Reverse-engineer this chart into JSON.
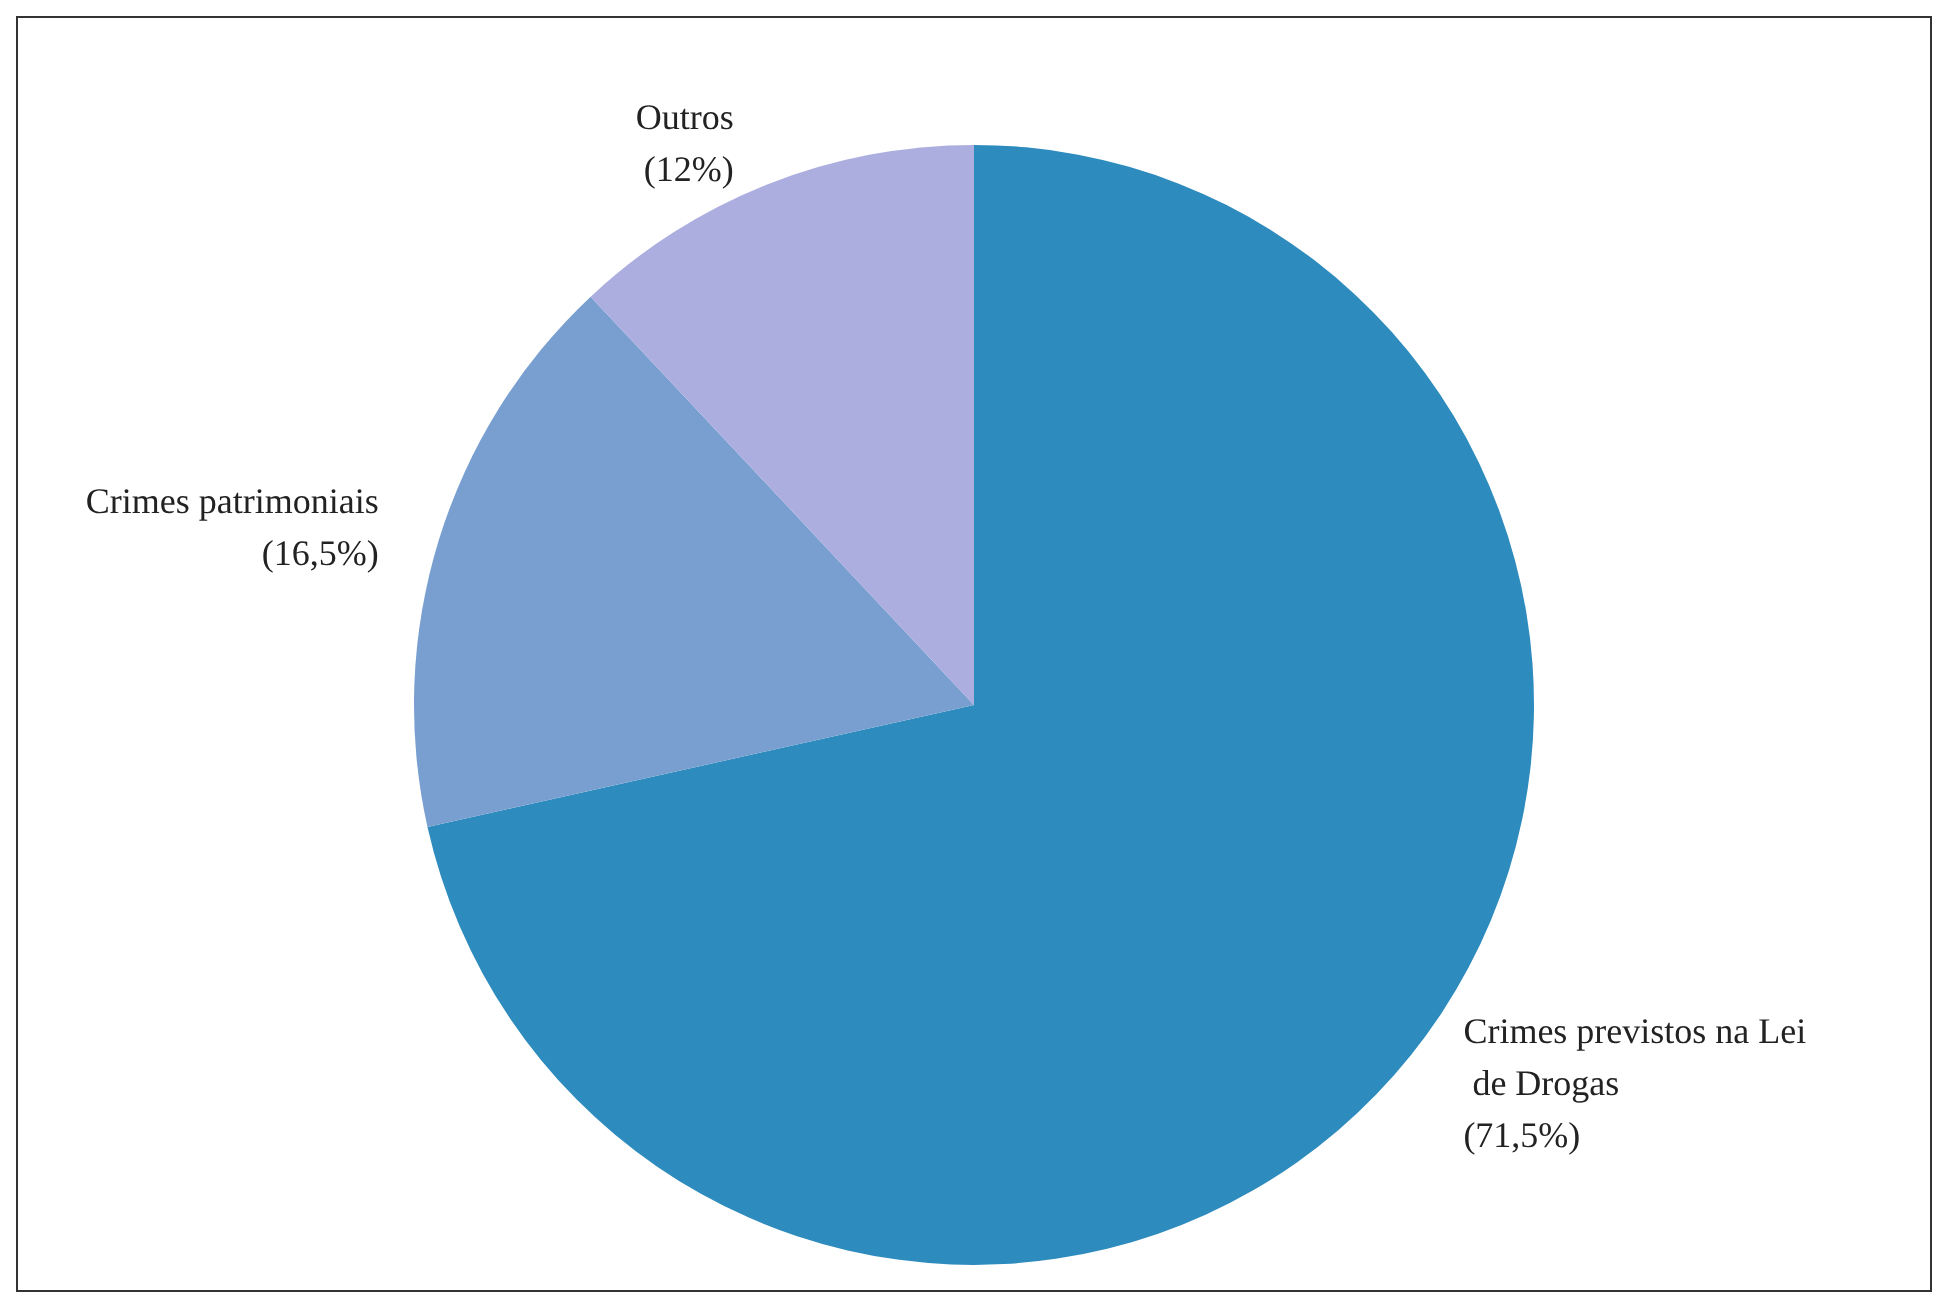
{
  "chart_data": {
    "type": "pie",
    "categories": [
      "Crimes previstos na Lei de Drogas",
      "Crimes patrimoniais",
      "Outros"
    ],
    "values": [
      71.5,
      16.5,
      12
    ],
    "colors": [
      "#2e8bbd",
      "#789fd0",
      "#adaee0"
    ],
    "value_labels": [
      "(71,5%)",
      "(16,5%)",
      "(12%)"
    ],
    "legend": false
  }
}
